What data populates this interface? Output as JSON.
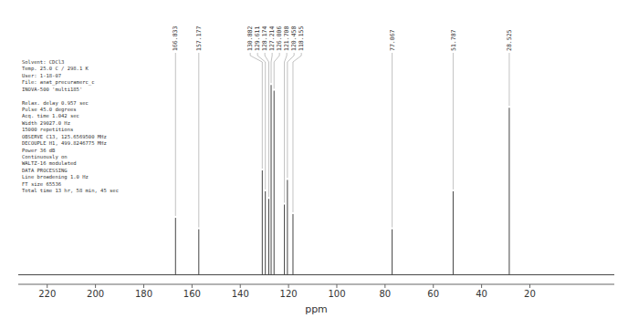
{
  "chart_data": {
    "type": "stem",
    "x": [
      166.833,
      157.177,
      130.882,
      129.611,
      128.174,
      121.708,
      120.458,
      118.155,
      127.214,
      126.006,
      77.067,
      51.787,
      28.525
    ],
    "values": [
      0.3,
      0.24,
      0.55,
      0.44,
      0.4,
      0.37,
      0.5,
      0.32,
      1.0,
      0.97,
      0.24,
      0.44,
      0.88
    ],
    "xlim": [
      232,
      -15
    ],
    "ylim": [
      -0.05,
      1.15
    ],
    "xticks": [
      220,
      200,
      180,
      160,
      140,
      120,
      100,
      80,
      60,
      40,
      20
    ],
    "xlabel": "ppm",
    "color": "#444444",
    "tick_labels": "x",
    "annotations": [
      "Solvent: CDCl3\nTemp. 25.0 C / 298.1 K\nUser: 1-18-07\nFile: anat_precuramerc_c\nINOVA-500 'multi185'\n\nRelax. delay 0.957 sec\nPulse 45.0 degrees\nAcq. time 1.042 sec\nWidth 29027.0 Hz\n15000 repetitions\nOBSERVE  C13, 125.6569500 MHz\nDECOUPLE H1, 499.8246775 MHz\nPower 36 dB\nContinuously on\nWALTZ-16 modulated\nDATA PROCESSING\nLine broadening 1.0 Hz\nFT size 65536\nTotal time 13 hr, 58 min, 45 sec"
    ]
  }
}
